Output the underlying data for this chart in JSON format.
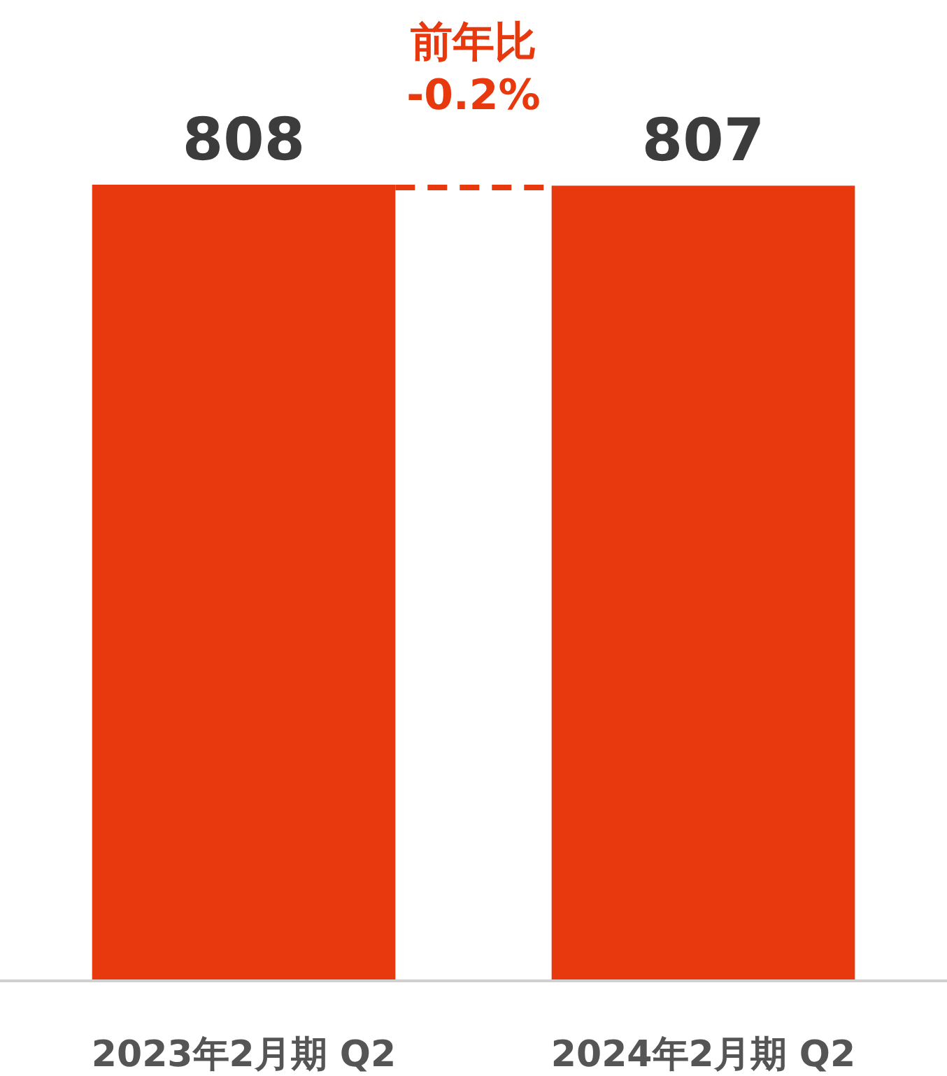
{
  "chart_data": {
    "type": "bar",
    "categories": [
      "2023年2月期 Q2",
      "2024年2月期 Q2"
    ],
    "values": [
      808,
      807
    ],
    "color": "#e8380d",
    "data_labels": true,
    "ref_lines": [
      {
        "axis": "y",
        "value": 808,
        "label": "前年比\n-0.2%",
        "color": "#e8380d",
        "line_style": "dashed"
      }
    ]
  }
}
